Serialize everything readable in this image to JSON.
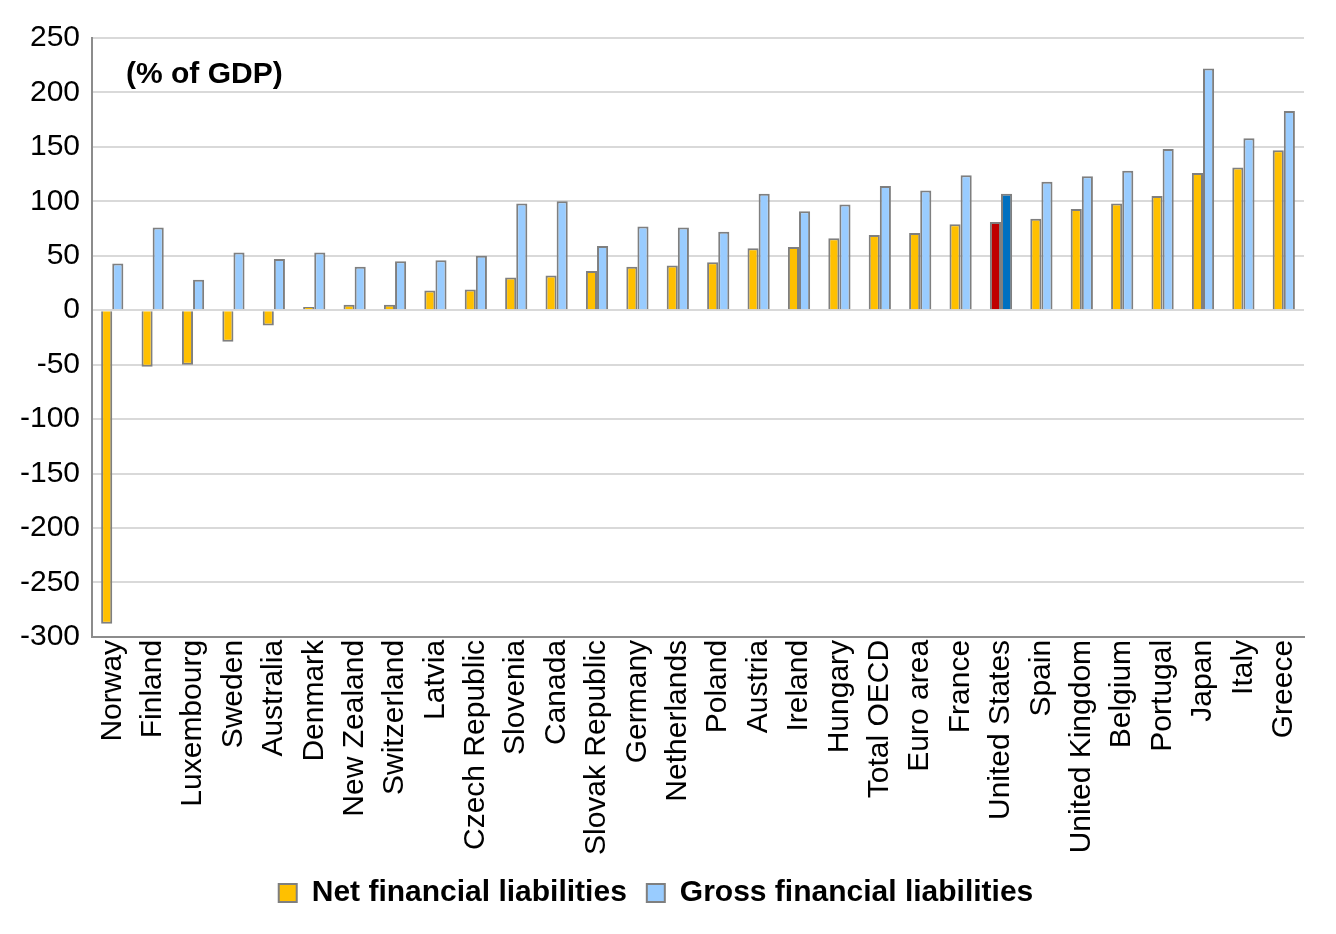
{
  "chart_data": {
    "type": "bar",
    "title": "(% of GDP)",
    "categories": [
      "Norway",
      "Finland",
      "Luxembourg",
      "Sweden",
      "Australia",
      "Denmark",
      "New Zealand",
      "Switzerland",
      "Latvia",
      "Czech Republic",
      "Slovenia",
      "Canada",
      "Slovak Republic",
      "Germany",
      "Netherlands",
      "Poland",
      "Austria",
      "Ireland",
      "Hungary",
      "Total OECD",
      "Euro area",
      "France",
      "United States",
      "Spain",
      "United Kingdom",
      "Belgium",
      "Portugal",
      "Japan",
      "Italy",
      "Greece"
    ],
    "series": [
      {
        "name": "Net financial liabilities",
        "color": "#ffc000",
        "colors": [
          "#ffc000",
          "#ffc000",
          "#ffc000",
          "#ffc000",
          "#ffc000",
          "#ffc000",
          "#ffc000",
          "#ffc000",
          "#ffc000",
          "#ffc000",
          "#ffc000",
          "#ffc000",
          "#ffc000",
          "#ffc000",
          "#ffc000",
          "#ffc000",
          "#ffc000",
          "#ffc000",
          "#ffc000",
          "#ffc000",
          "#ffc000",
          "#ffc000",
          "#c00000",
          "#ffc000",
          "#ffc000",
          "#ffc000",
          "#ffc000",
          "#ffc000",
          "#ffc000",
          "#ffc000"
        ],
        "values": [
          -288,
          -52,
          -50,
          -29,
          -14,
          3,
          5,
          5,
          18,
          19,
          30,
          32,
          36,
          40,
          41,
          44,
          57,
          58,
          66,
          69,
          71,
          79,
          81,
          84,
          93,
          98,
          105,
          126,
          131,
          147
        ]
      },
      {
        "name": "Gross financial liabilities",
        "color": "#99ccff",
        "colors": [
          "#99ccff",
          "#99ccff",
          "#99ccff",
          "#99ccff",
          "#99ccff",
          "#99ccff",
          "#99ccff",
          "#99ccff",
          "#99ccff",
          "#99ccff",
          "#99ccff",
          "#99ccff",
          "#99ccff",
          "#99ccff",
          "#99ccff",
          "#99ccff",
          "#99ccff",
          "#99ccff",
          "#99ccff",
          "#99ccff",
          "#99ccff",
          "#99ccff",
          "#0070c0",
          "#99ccff",
          "#99ccff",
          "#99ccff",
          "#99ccff",
          "#99ccff",
          "#99ccff",
          "#99ccff"
        ],
        "values": [
          43,
          76,
          28,
          53,
          47,
          53,
          40,
          45,
          46,
          50,
          98,
          100,
          59,
          77,
          76,
          72,
          107,
          91,
          97,
          114,
          110,
          124,
          107,
          118,
          123,
          128,
          148,
          222,
          158,
          183
        ]
      }
    ],
    "ylim": [
      -300,
      250
    ],
    "yticks": [
      -300,
      -250,
      -200,
      -150,
      -100,
      -50,
      0,
      50,
      100,
      150,
      200,
      250
    ],
    "grid": "y",
    "legend": "bottom"
  }
}
